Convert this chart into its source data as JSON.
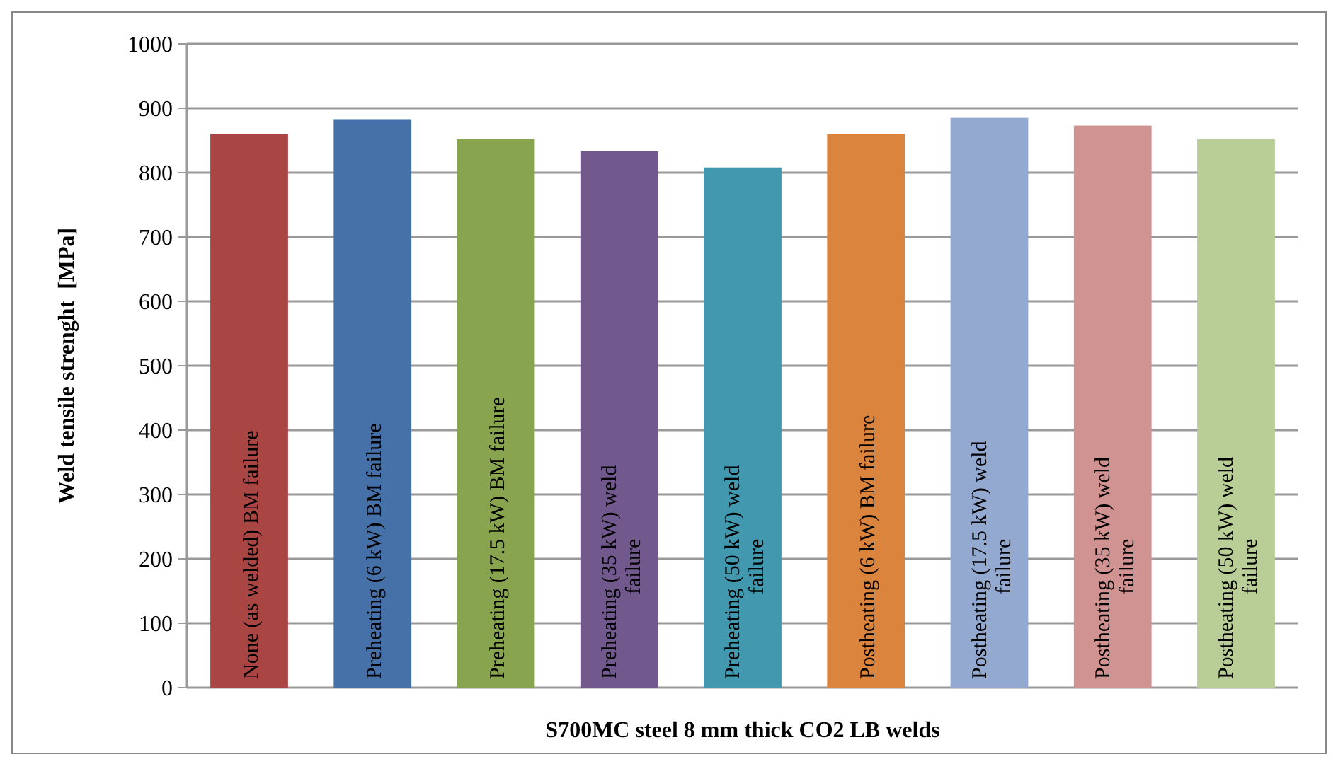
{
  "chart_data": {
    "type": "bar",
    "xlabel": "S700MC steel 8 mm thick CO2 LB welds",
    "ylabel": "Weld tensile strenght  [MPa]",
    "categories": [
      "None (as welded) BM failure",
      "Preheating (6 kW) BM failure",
      "Preheating (17.5 kW) BM failure",
      "Preheating (35 kW) weld  failure",
      "Preheating (50 kW) weld  failure",
      "Postheating (6 kW) BM failure",
      "Postheating (17.5 kW) weld failure",
      "Postheating (35 kW) weld failure",
      "Postheating (50 kW) weld failure"
    ],
    "values": [
      860,
      883,
      852,
      833,
      808,
      860,
      885,
      873,
      852
    ],
    "colors": [
      "#a94643",
      "#4571a8",
      "#89a44e",
      "#71598e",
      "#4198af",
      "#db843d",
      "#93a9d0",
      "#d19392",
      "#b9cd96"
    ],
    "ylim": [
      0,
      1000
    ],
    "yticks": [
      0,
      100,
      200,
      300,
      400,
      500,
      600,
      700,
      800,
      900,
      1000
    ],
    "grid": "y"
  }
}
